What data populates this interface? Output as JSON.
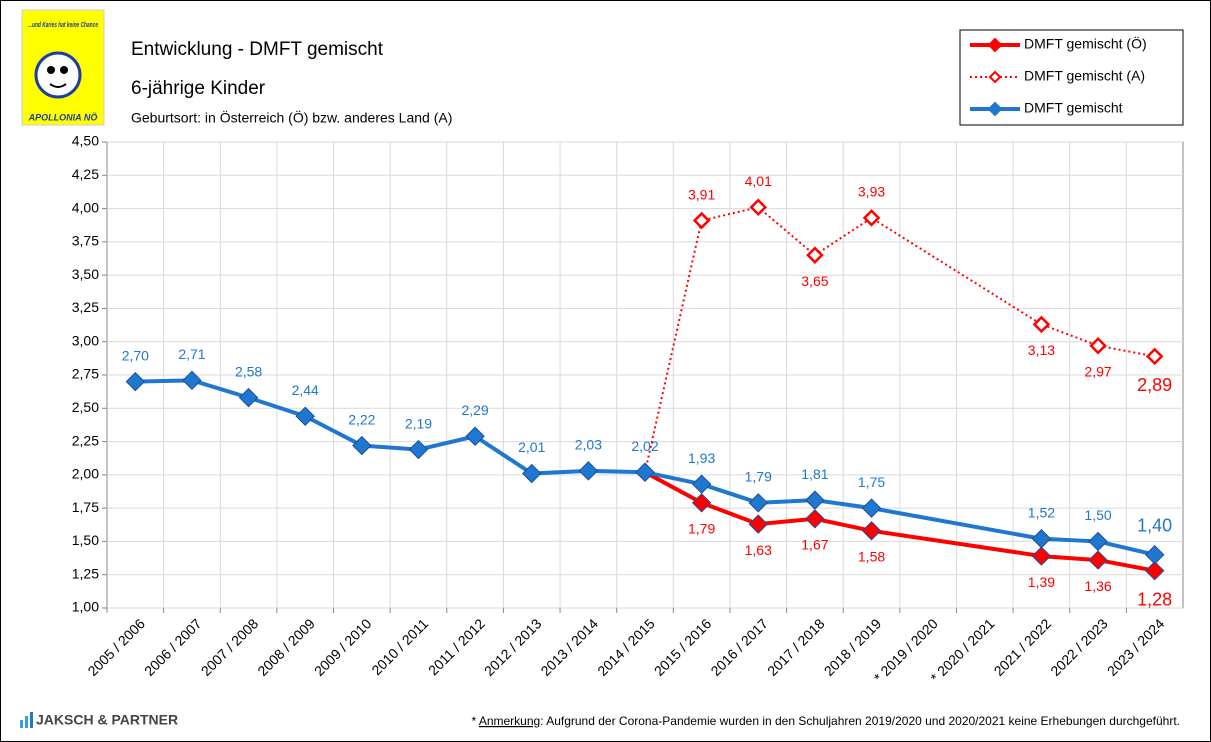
{
  "chart_data": {
    "type": "line",
    "title": "Entwicklung - DMFT gemischt",
    "subtitle": "6-jährige Kinder",
    "note": "Geburtsort: in Österreich (Ö) bzw. anderes Land (A)",
    "logo_text": "...und Karies hat keine Chance",
    "logo_caption": "APOLLONIA NÖ",
    "brand": "JAKSCH & PARTNER",
    "footnote": {
      "star": "* ",
      "label": "Anmerkung",
      "text": ": Aufgrund der Corona-Pandemie wurden in den Schuljahren 2019/2020 und 2020/2021 keine Erhebungen durchgeführt."
    },
    "categories": [
      "2005 / 2006",
      "2006 / 2007",
      "2007 / 2008",
      "2008 / 2009",
      "2009 / 2010",
      "2010 / 2011",
      "2011 / 2012",
      "2012 / 2013",
      "2013 / 2014",
      "2014 / 2015",
      "2015 / 2016",
      "2016 / 2017",
      "2017 / 2018",
      "2018 / 2019",
      "* 2019 / 2020",
      "* 2020 / 2021",
      "2021 / 2022",
      "2022 / 2023",
      "2023 / 2024"
    ],
    "ylim": [
      1,
      4.5
    ],
    "yticks": [
      {
        "value": 1,
        "label": "1,00"
      },
      {
        "value": 1.25,
        "label": "1,25"
      },
      {
        "value": 1.5,
        "label": "1,50"
      },
      {
        "value": 1.75,
        "label": "1,75"
      },
      {
        "value": 2,
        "label": "2,00"
      },
      {
        "value": 2.25,
        "label": "2,25"
      },
      {
        "value": 2.5,
        "label": "2,50"
      },
      {
        "value": 2.75,
        "label": "2,75"
      },
      {
        "value": 3,
        "label": "3,00"
      },
      {
        "value": 3.25,
        "label": "3,25"
      },
      {
        "value": 3.5,
        "label": "3,50"
      },
      {
        "value": 3.75,
        "label": "3,75"
      },
      {
        "value": 4,
        "label": "4,00"
      },
      {
        "value": 4.25,
        "label": "4,25"
      },
      {
        "value": 4.5,
        "label": "4,50"
      }
    ],
    "grid": true,
    "connect_gaps": true,
    "legend": "top-right",
    "series": [
      {
        "name": "DMFT gemischt (Ö)",
        "color": "#ff0000",
        "style": "solid",
        "marker": "filled",
        "values": [
          null,
          null,
          null,
          null,
          null,
          null,
          null,
          null,
          null,
          2.02,
          1.79,
          1.63,
          1.67,
          1.58,
          null,
          null,
          1.39,
          1.36,
          1.28
        ],
        "value_labels": [
          null,
          null,
          null,
          null,
          null,
          null,
          null,
          null,
          null,
          null,
          "1,79",
          "1,63",
          "1,67",
          "1,58",
          null,
          null,
          "1,39",
          "1,36",
          "1,28"
        ]
      },
      {
        "name": "DMFT gemischt (A)",
        "color": "#ff0000",
        "style": "dotted",
        "marker": "hollow",
        "values": [
          null,
          null,
          null,
          null,
          null,
          null,
          null,
          null,
          null,
          2.02,
          3.91,
          4.01,
          3.65,
          3.93,
          null,
          null,
          3.13,
          2.97,
          2.89
        ],
        "value_labels": [
          null,
          null,
          null,
          null,
          null,
          null,
          null,
          null,
          null,
          null,
          "3,91",
          "4,01",
          "3,65",
          "3,93",
          null,
          null,
          "3,13",
          "2,97",
          "2,89"
        ]
      },
      {
        "name": "DMFT gemischt",
        "color": "#1f77d0",
        "style": "solid",
        "marker": "filled",
        "values": [
          2.7,
          2.71,
          2.58,
          2.44,
          2.22,
          2.19,
          2.29,
          2.01,
          2.03,
          2.02,
          1.93,
          1.79,
          1.81,
          1.75,
          null,
          null,
          1.52,
          1.5,
          1.4
        ],
        "value_labels": [
          "2,70",
          "2,71",
          "2,58",
          "2,44",
          "2,22",
          "2,19",
          "2,29",
          "2,01",
          "2,03",
          "2,02",
          "1,93",
          "1,79",
          "1,81",
          "1,75",
          null,
          null,
          "1,52",
          "1,50",
          "1,40"
        ]
      }
    ]
  }
}
